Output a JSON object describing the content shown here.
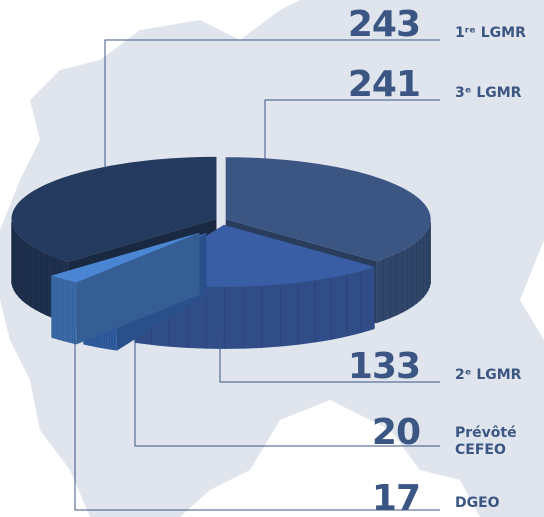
{
  "chart_data": {
    "type": "pie",
    "categories": [
      "1ʳᵉ LGMR",
      "3ᵉ LGMR",
      "2ᵉ LGMR",
      "Prévôté CEFEO",
      "DGEO"
    ],
    "values": [
      243,
      241,
      133,
      20,
      17
    ],
    "colors": [
      "#243a5e",
      "#3b5683",
      "#3a5ea5",
      "#3a72c6",
      "#4a86d4"
    ]
  }
}
